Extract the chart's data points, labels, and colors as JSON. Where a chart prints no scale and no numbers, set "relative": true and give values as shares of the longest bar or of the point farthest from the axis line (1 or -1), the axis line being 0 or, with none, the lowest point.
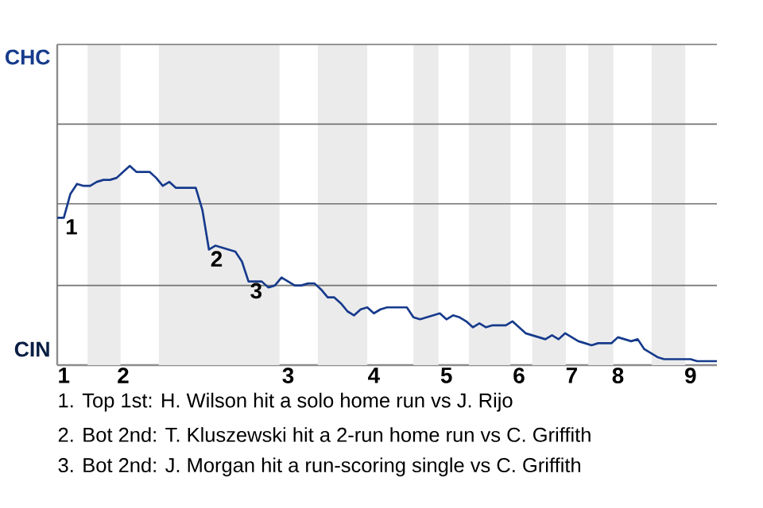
{
  "chart_data": {
    "type": "line",
    "relative": true,
    "marker": "none",
    "line_style": "solid",
    "ref_lines": [
      {
        "axis": "y",
        "value": 0.4,
        "color": "#737373"
      },
      {
        "axis": "y",
        "value": 0.81,
        "color": "#737373"
      },
      {
        "axis": "y",
        "value": 1.21,
        "color": "#737373"
      },
      {
        "axis": "y",
        "value": 1.61,
        "color": "#737373"
      }
    ],
    "categories": [
      null,
      "1",
      null,
      null,
      null,
      null,
      null,
      null,
      null,
      null,
      "2",
      null,
      null,
      null,
      null,
      null,
      null,
      null,
      null,
      null,
      null,
      null,
      null,
      null,
      null,
      null,
      null,
      null,
      null,
      null,
      null,
      null,
      null,
      null,
      null,
      "3",
      null,
      null,
      null,
      null,
      null,
      null,
      null,
      null,
      null,
      null,
      null,
      null,
      "4",
      null,
      null,
      null,
      null,
      null,
      null,
      null,
      null,
      null,
      null,
      "5",
      null,
      null,
      null,
      null,
      null,
      null,
      null,
      null,
      null,
      null,
      "6",
      null,
      null,
      null,
      null,
      null,
      null,
      null,
      "7",
      null,
      null,
      null,
      null,
      null,
      null,
      "8",
      null,
      null,
      null,
      null,
      null,
      null,
      null,
      null,
      null,
      null,
      "9",
      null,
      null,
      null,
      null
    ],
    "series": [
      {
        "color": "#163a8c",
        "values": [
          0.74,
          0.74,
          0.86,
          0.91,
          0.9,
          0.9,
          0.92,
          0.93,
          0.93,
          0.94,
          0.97,
          1.0,
          0.97,
          0.97,
          0.97,
          0.94,
          0.9,
          0.92,
          0.89,
          0.89,
          0.89,
          0.89,
          0.78,
          0.58,
          0.6,
          0.59,
          0.58,
          0.57,
          0.52,
          0.42,
          0.42,
          0.42,
          0.39,
          0.4,
          0.44,
          0.42,
          0.4,
          0.4,
          0.41,
          0.41,
          0.38,
          0.34,
          0.34,
          0.31,
          0.27,
          0.25,
          0.28,
          0.29,
          0.26,
          0.28,
          0.29,
          0.29,
          0.29,
          0.29,
          0.24,
          0.23,
          0.24,
          0.25,
          0.26,
          0.23,
          0.25,
          0.24,
          0.22,
          0.19,
          0.21,
          0.19,
          0.2,
          0.2,
          0.2,
          0.22,
          0.19,
          0.16,
          0.15,
          0.14,
          0.13,
          0.15,
          0.13,
          0.16,
          0.14,
          0.12,
          0.11,
          0.1,
          0.11,
          0.11,
          0.11,
          0.14,
          0.13,
          0.12,
          0.13,
          0.08,
          0.06,
          0.04,
          0.03,
          0.03,
          0.03,
          0.03,
          0.03,
          0.02,
          0.02,
          0.02,
          0.02
        ]
      }
    ],
    "annotations": [
      "CHC",
      "CIN",
      {
        "text": "1",
        "x": "1",
        "y": 0.74
      },
      {
        "text": "2",
        "y": 0.58
      },
      {
        "text": "3",
        "y": 0.42
      },
      "1. Top 1st: H. Wilson hit a solo home run vs J. Rijo",
      "2. Bot 2nd: T. Kluszewski hit a 2-run home run vs C. Griffith",
      "3. Bot 2nd: J. Morgan hit a run-scoring single vs C. Griffith"
    ]
  }
}
